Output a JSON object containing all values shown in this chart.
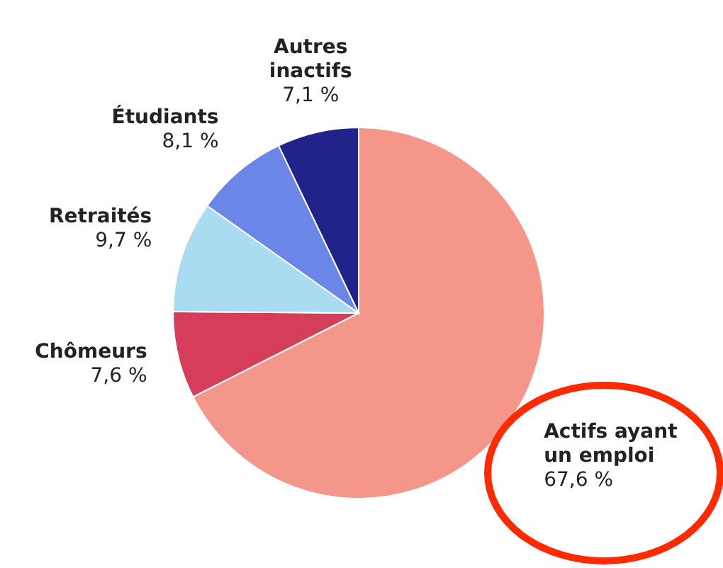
{
  "chart_data": {
    "type": "pie",
    "categories": [
      "Actifs ayant un emploi",
      "Chômeurs",
      "Retraités",
      "Étudiants",
      "Autres inactifs"
    ],
    "values": [
      67.6,
      7.6,
      9.7,
      8.1,
      7.1
    ],
    "colors": [
      "#f4968a",
      "#d63d5a",
      "#a9dcf0",
      "#6a86e8",
      "#22238a"
    ],
    "value_labels": [
      "67,6 %",
      "7,6 %",
      "9,7 %",
      "8,1 %",
      "7,1 %"
    ]
  }
}
